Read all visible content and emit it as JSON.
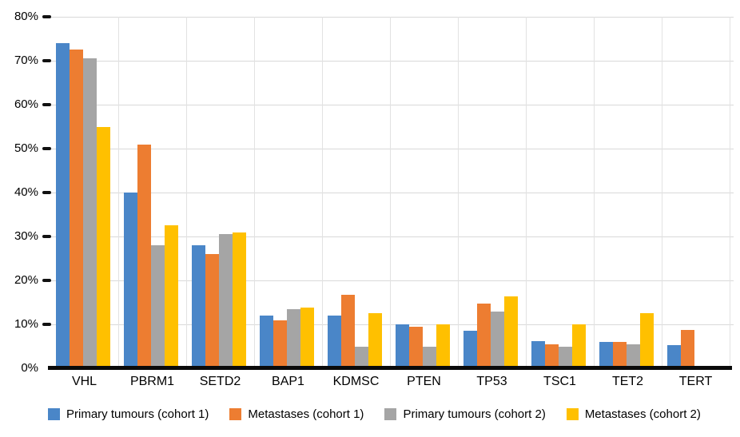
{
  "chart_data": {
    "type": "bar",
    "title": "",
    "xlabel": "",
    "ylabel": "",
    "ylim": [
      0,
      80
    ],
    "ytick_step": 10,
    "ytick_suffix": "%",
    "grid": true,
    "legend_position": "bottom",
    "categories": [
      "VHL",
      "PBRM1",
      "SETD2",
      "BAP1",
      "KDMSC",
      "PTEN",
      "TP53",
      "TSC1",
      "TET2",
      "TERT"
    ],
    "series": [
      {
        "name": "Primary tumours (cohort 1)",
        "color": "#4A86C8",
        "values": [
          74,
          40,
          28,
          12,
          12,
          10,
          8.5,
          6.2,
          6,
          5.2
        ]
      },
      {
        "name": "Metastases (cohort 1)",
        "color": "#ED7D31",
        "values": [
          72.5,
          51,
          26,
          11,
          16.8,
          9.5,
          14.7,
          5.5,
          6,
          8.8
        ]
      },
      {
        "name": "Primary tumours (cohort 2)",
        "color": "#A5A5A5",
        "values": [
          70.5,
          28,
          30.5,
          13.5,
          5,
          5,
          13,
          5,
          5.5,
          0
        ]
      },
      {
        "name": "Metastases (cohort 2)",
        "color": "#FFC000",
        "values": [
          55,
          32.5,
          31,
          13.8,
          12.5,
          10,
          16.3,
          10,
          12.5,
          0
        ]
      }
    ]
  },
  "colors": {
    "grid_h": "#d9d9d9",
    "grid_v": "#e2e2e2",
    "axis": "#0a0a0a",
    "text": "#000000"
  }
}
